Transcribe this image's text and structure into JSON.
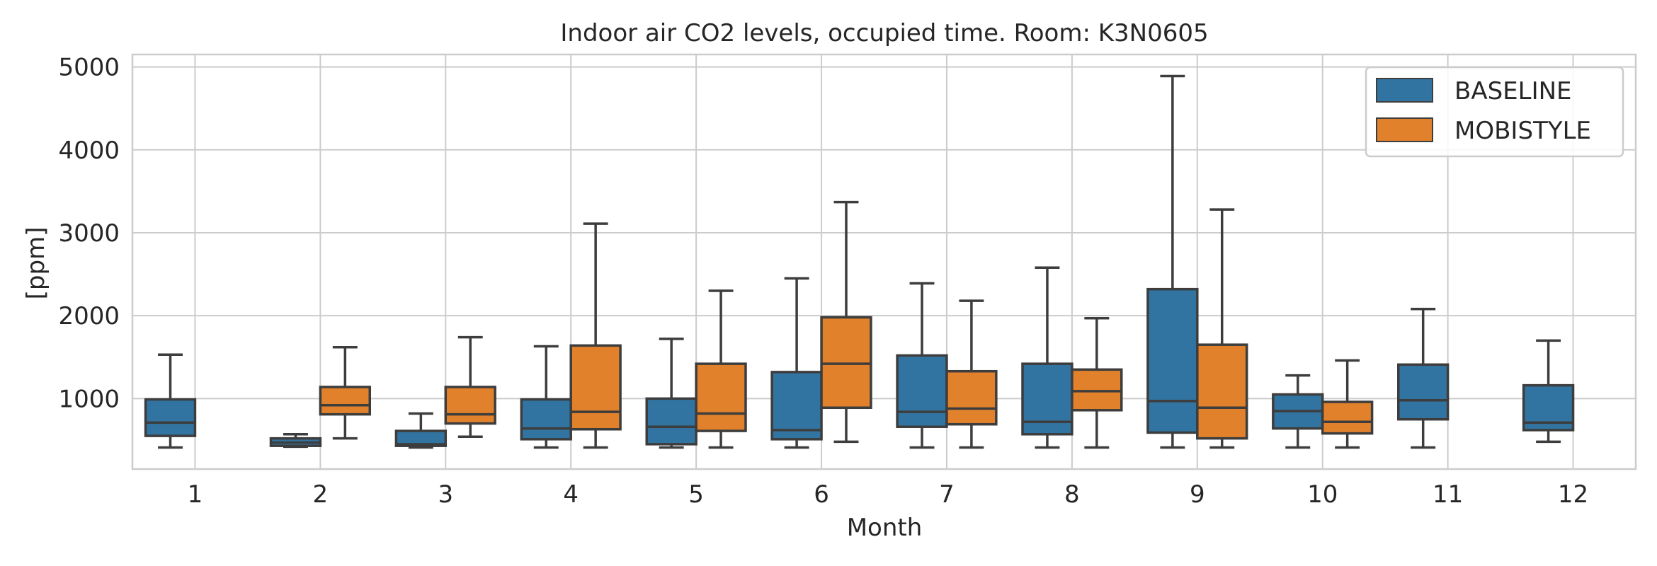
{
  "chart_data": {
    "type": "box",
    "title": "Indoor air CO2 levels, occupied time. Room: K3N0605",
    "xlabel": "Month",
    "ylabel": "[ppm]",
    "ylim": [
      150,
      5150
    ],
    "yticks": [
      1000,
      2000,
      3000,
      4000,
      5000
    ],
    "categories": [
      "1",
      "2",
      "3",
      "4",
      "5",
      "6",
      "7",
      "8",
      "9",
      "10",
      "11",
      "12"
    ],
    "grid": true,
    "legend_position": "top-right",
    "series": [
      {
        "name": "BASELINE",
        "color": "#3274a1",
        "boxes": [
          {
            "month": "1",
            "min": 410,
            "q1": 550,
            "median": 710,
            "q3": 990,
            "max": 1530
          },
          {
            "month": "2",
            "min": 420,
            "q1": 430,
            "median": 470,
            "q3": 520,
            "max": 570
          },
          {
            "month": "3",
            "min": 410,
            "q1": 430,
            "median": 450,
            "q3": 610,
            "max": 820
          },
          {
            "month": "4",
            "min": 410,
            "q1": 510,
            "median": 640,
            "q3": 990,
            "max": 1630
          },
          {
            "month": "5",
            "min": 410,
            "q1": 450,
            "median": 660,
            "q3": 1000,
            "max": 1720
          },
          {
            "month": "6",
            "min": 410,
            "q1": 510,
            "median": 620,
            "q3": 1320,
            "max": 2450
          },
          {
            "month": "7",
            "min": 410,
            "q1": 660,
            "median": 840,
            "q3": 1520,
            "max": 2390
          },
          {
            "month": "8",
            "min": 410,
            "q1": 570,
            "median": 720,
            "q3": 1420,
            "max": 2580
          },
          {
            "month": "9",
            "min": 410,
            "q1": 590,
            "median": 970,
            "q3": 2320,
            "max": 4890
          },
          {
            "month": "10",
            "min": 410,
            "q1": 640,
            "median": 850,
            "q3": 1050,
            "max": 1280
          },
          {
            "month": "11",
            "min": 410,
            "q1": 750,
            "median": 980,
            "q3": 1410,
            "max": 2080
          },
          {
            "month": "12",
            "min": 480,
            "q1": 620,
            "median": 710,
            "q3": 1160,
            "max": 1700
          }
        ]
      },
      {
        "name": "MOBISTYLE",
        "color": "#e1812c",
        "boxes": [
          {
            "month": "2",
            "min": 520,
            "q1": 810,
            "median": 920,
            "q3": 1140,
            "max": 1620
          },
          {
            "month": "3",
            "min": 540,
            "q1": 700,
            "median": 810,
            "q3": 1140,
            "max": 1740
          },
          {
            "month": "4",
            "min": 410,
            "q1": 630,
            "median": 840,
            "q3": 1640,
            "max": 3110
          },
          {
            "month": "5",
            "min": 410,
            "q1": 610,
            "median": 820,
            "q3": 1420,
            "max": 2300
          },
          {
            "month": "6",
            "min": 480,
            "q1": 890,
            "median": 1420,
            "q3": 1980,
            "max": 3370
          },
          {
            "month": "7",
            "min": 410,
            "q1": 690,
            "median": 880,
            "q3": 1330,
            "max": 2180
          },
          {
            "month": "8",
            "min": 410,
            "q1": 860,
            "median": 1090,
            "q3": 1350,
            "max": 1970
          },
          {
            "month": "9",
            "min": 410,
            "q1": 520,
            "median": 890,
            "q3": 1650,
            "max": 3280
          },
          {
            "month": "10",
            "min": 410,
            "q1": 580,
            "median": 720,
            "q3": 960,
            "max": 1460
          }
        ]
      }
    ]
  }
}
